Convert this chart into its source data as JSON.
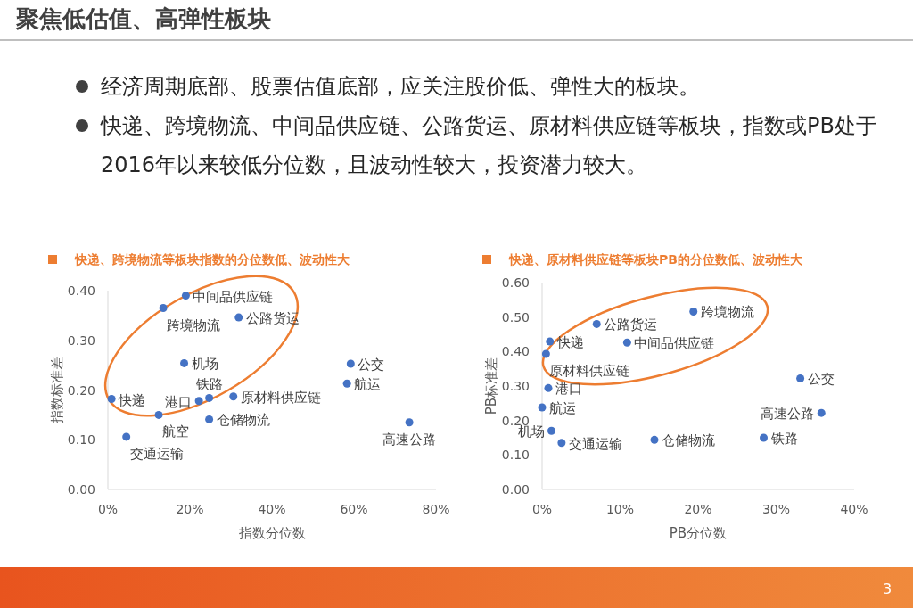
{
  "chart_data": [
    {
      "type": "other",
      "title": "聚焦低估值、高弹性板块",
      "annotations": [
        "经济周期底部、股票估值底部，应关注股价低、弹性大的板块。",
        "快递、跨境物流、中间品供应链、公路货运、原材料供应链等板块，指数或PB处于2016年以来较低分位数，且波动性较大，投资潜力较大。",
        "3"
      ]
    },
    {
      "type": "scatter",
      "title": "快递、跨境物流等板块指数的分位数低、波动性大",
      "xlabel": "指数分位数",
      "ylabel": "指数标准差",
      "xlim": [
        0,
        80
      ],
      "xticks": [
        {
          "value": 0,
          "label": "0%"
        },
        {
          "value": 20,
          "label": "20%"
        },
        {
          "value": 40,
          "label": "40%"
        },
        {
          "value": 60,
          "label": "60%"
        },
        {
          "value": 80,
          "label": "80%"
        }
      ],
      "ylim": [
        0,
        0.4
      ],
      "yticks": [
        {
          "value": 0,
          "label": "0.00"
        },
        {
          "value": 0.1,
          "label": "0.10"
        },
        {
          "value": 0.2,
          "label": "0.20"
        },
        {
          "value": 0.3,
          "label": "0.30"
        },
        {
          "value": 0.4,
          "label": "0.40"
        }
      ],
      "marker": "circle",
      "series": [
        {
          "color": "#4472c4",
          "x": [
            19.0,
            13.5,
            31.9,
            18.6,
            59.2,
            58.3,
            0.9,
            22.2,
            24.7,
            30.6,
            12.4,
            24.7,
            4.5,
            73.5
          ],
          "values": [
            0.39,
            0.365,
            0.346,
            0.254,
            0.253,
            0.213,
            0.182,
            0.178,
            0.184,
            0.187,
            0.15,
            0.141,
            0.106,
            0.135
          ],
          "value_labels": [
            "中间品供应链",
            "跨境物流",
            "公路货运",
            "机场",
            "公交",
            "航运",
            "快递",
            "港口",
            "铁路",
            "原材料供应链",
            "航空",
            "仓储物流",
            "交通运输",
            "高速公路"
          ]
        }
      ]
    },
    {
      "type": "scatter",
      "title": "快递、原材料供应链等板块PB的分位数低、波动性大",
      "xlabel": "PB分位数",
      "ylabel": "PB标准差",
      "xlim": [
        0,
        40
      ],
      "xticks": [
        {
          "value": 0,
          "label": "0%"
        },
        {
          "value": 10,
          "label": "10%"
        },
        {
          "value": 20,
          "label": "20%"
        },
        {
          "value": 30,
          "label": "30%"
        },
        {
          "value": 40,
          "label": "40%"
        }
      ],
      "ylim": [
        0,
        0.6
      ],
      "yticks": [
        {
          "value": 0,
          "label": "0.00"
        },
        {
          "value": 0.1,
          "label": "0.10"
        },
        {
          "value": 0.2,
          "label": "0.20"
        },
        {
          "value": 0.3,
          "label": "0.30"
        },
        {
          "value": 0.4,
          "label": "0.40"
        },
        {
          "value": 0.5,
          "label": "0.50"
        },
        {
          "value": 0.6,
          "label": "0.60"
        }
      ],
      "marker": "circle",
      "series": [
        {
          "color": "#4472c4",
          "x": [
            19.4,
            7.0,
            1.0,
            10.9,
            0.5,
            0.8,
            0.0,
            1.2,
            2.5,
            14.4,
            28.4,
            33.1,
            35.8
          ],
          "values": [
            0.516,
            0.48,
            0.429,
            0.426,
            0.393,
            0.294,
            0.238,
            0.17,
            0.135,
            0.144,
            0.15,
            0.322,
            0.222
          ],
          "value_labels": [
            "跨境物流",
            "公路货运",
            "快递",
            "中间品供应链",
            "原材料供应链",
            "港口",
            "航运",
            "机场",
            "交通运输",
            "仓储物流",
            "铁路",
            "公交",
            "高速公路"
          ]
        }
      ]
    }
  ]
}
